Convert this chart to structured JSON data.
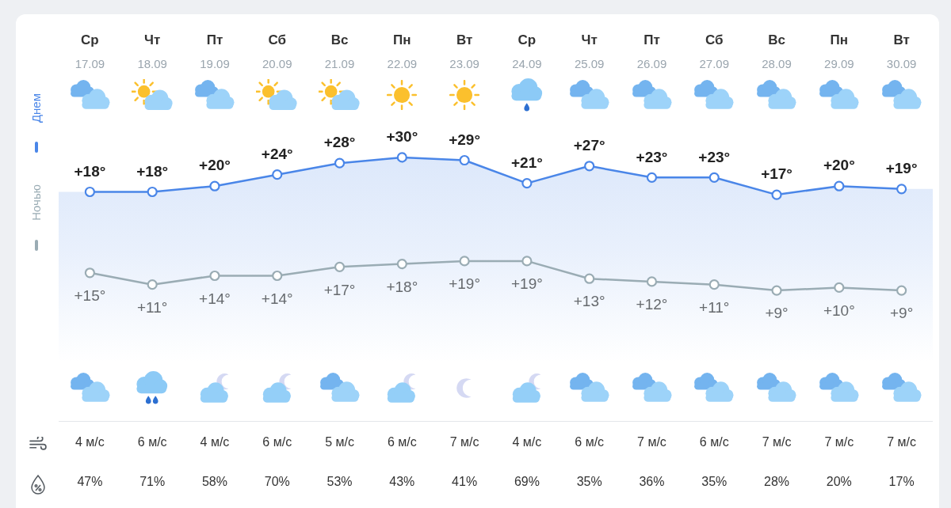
{
  "chart_data": [
    {
      "type": "line",
      "categories": [
        "Ср\n17.09",
        "Чт\n18.09",
        "Пт\n19.09",
        "Сб\n20.09",
        "Вс\n21.09",
        "Пн\n22.09",
        "Вт\n23.09",
        "Ср\n24.09",
        "Чт\n25.09",
        "Пт\n26.09",
        "Сб\n27.09",
        "Вс\n28.09",
        "Пн\n29.09",
        "Вт\n30.09"
      ],
      "series": [
        {
          "name": "Днем",
          "color": "#4a86e8",
          "values": [
            18,
            18,
            20,
            24,
            28,
            30,
            29,
            21,
            27,
            23,
            23,
            17,
            20,
            19
          ],
          "value_labels": [
            "+18°",
            "+18°",
            "+20°",
            "+24°",
            "+28°",
            "+30°",
            "+29°",
            "+21°",
            "+27°",
            "+23°",
            "+23°",
            "+17°",
            "+20°",
            "+19°"
          ]
        }
      ],
      "tick_labels": "x",
      "legend": "left",
      "marker": "circle"
    },
    {
      "type": "line",
      "categories": [
        null,
        null,
        null,
        null,
        null,
        null,
        null,
        null,
        null,
        null,
        null,
        null,
        null,
        null
      ],
      "series": [
        {
          "name": "Ночью",
          "color": "#9aacb4",
          "values": [
            15,
            11,
            14,
            14,
            17,
            18,
            19,
            19,
            13,
            12,
            11,
            9,
            10,
            9
          ],
          "value_labels": [
            "+15°",
            "+11°",
            "+14°",
            "+14°",
            "+17°",
            "+18°",
            "+19°",
            "+19°",
            "+13°",
            "+12°",
            "+11°",
            "+9°",
            "+10°",
            "+9°"
          ]
        }
      ],
      "tick_labels": false,
      "legend": "left",
      "marker": "circle",
      "annotations": [
        "4 м/с",
        "6 м/с",
        "4 м/с",
        "6 м/с",
        "5 м/с",
        "6 м/с",
        "7 м/с",
        "4 м/с",
        "6 м/с",
        "7 м/с",
        "6 м/с",
        "7 м/с",
        "7 м/с",
        "7 м/с",
        "47%",
        "71%",
        "58%",
        "70%",
        "53%",
        "43%",
        "41%",
        "69%",
        "35%",
        "36%",
        "35%",
        "28%",
        "20%",
        "17%"
      ]
    }
  ]
}
